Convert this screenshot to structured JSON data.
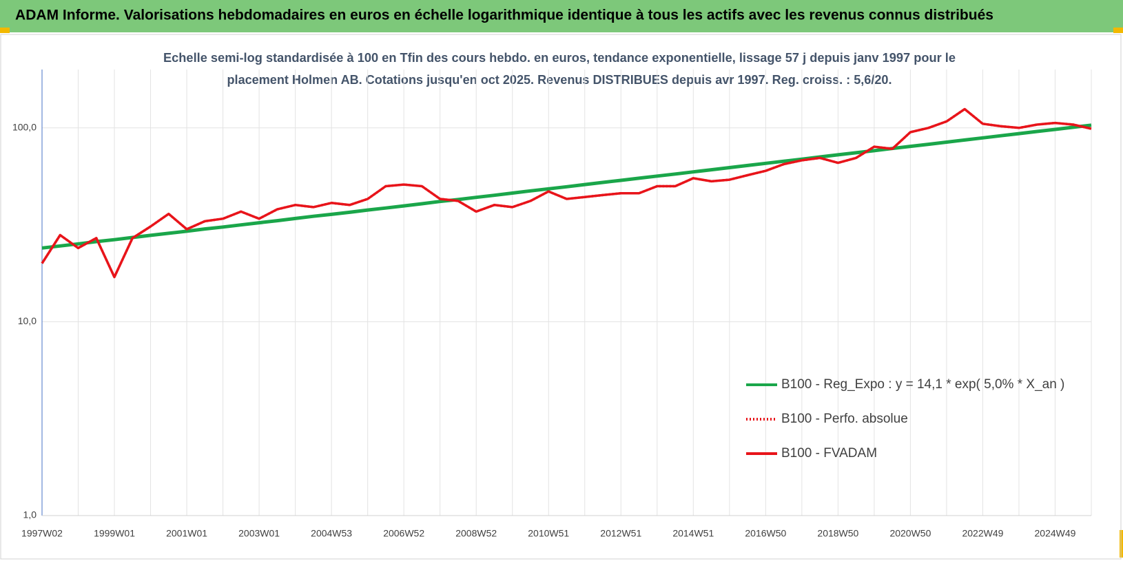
{
  "header": {
    "title": "ADAM Informe. Valorisations hebdomadaires en euros en échelle logarithmique identique à tous les actifs avec les revenus connus distribués"
  },
  "chart_data": {
    "type": "line",
    "title": [
      "Echelle semi-log standardisée à 100 en Tfin des cours hebdo. en euros, tendance exponentielle, lissage 57 j depuis janv 1997 pour le",
      "placement Holmen AB. Cotations jusqu'en oct 2025. Revenus DISTRIBUES depuis avr 1997.  Reg. croiss. : 5,6/20."
    ],
    "log_scale": true,
    "grid": true,
    "legend": "lower-right",
    "ylim": [
      1,
      200
    ],
    "yticks": [
      {
        "value": 1,
        "label": "1,0"
      },
      {
        "value": 10,
        "label": "10,0"
      },
      {
        "value": 100,
        "label": "100,0"
      }
    ],
    "categories": [
      "1997W02",
      null,
      null,
      null,
      "1999W01",
      null,
      null,
      null,
      "2001W01",
      null,
      null,
      null,
      "2003W01",
      null,
      null,
      null,
      "2004W53",
      null,
      null,
      null,
      "2006W52",
      null,
      null,
      null,
      "2008W52",
      null,
      null,
      null,
      "2010W51",
      null,
      null,
      null,
      "2012W51",
      null,
      null,
      null,
      "2014W51",
      null,
      null,
      null,
      "2016W50",
      null,
      null,
      null,
      "2018W50",
      null,
      null,
      null,
      "2020W50",
      null,
      null,
      null,
      "2022W49",
      null,
      null,
      null,
      "2024W49",
      null,
      null
    ],
    "series": [
      {
        "name": "B100 - Reg_Expo : y = 14,1 * exp( 5,0% *  X_an )",
        "color": "#1aa64a",
        "style": "solid",
        "values": [
          24.0,
          24.6,
          25.2,
          25.9,
          26.5,
          27.2,
          27.9,
          28.6,
          29.3,
          30.1,
          30.8,
          31.6,
          32.4,
          33.2,
          34.1,
          35.0,
          35.8,
          36.7,
          37.7,
          38.6,
          39.6,
          40.6,
          41.7,
          42.7,
          43.8,
          44.9,
          46.1,
          47.3,
          48.5,
          49.7,
          51.0,
          52.3,
          53.6,
          55.0,
          56.4,
          57.8,
          59.3,
          60.8,
          62.4,
          64.0,
          65.6,
          67.3,
          69.0,
          70.8,
          72.6,
          74.4,
          76.3,
          78.3,
          80.3,
          82.3,
          84.4,
          86.6,
          88.8,
          91.1,
          93.4,
          95.8,
          98.2,
          100.7,
          103.3
        ]
      },
      {
        "name": "B100 - Perfo. absolue",
        "color": "#e8141a",
        "style": "dotted",
        "values": [
          20,
          28,
          24,
          27,
          17,
          27,
          31,
          36,
          30,
          33,
          34,
          37,
          34,
          38,
          40,
          39,
          41,
          40,
          43,
          50,
          51,
          50,
          43,
          42,
          37,
          40,
          39,
          42,
          47,
          43,
          44,
          45,
          46,
          46,
          50,
          50,
          55,
          53,
          54,
          57,
          60,
          65,
          68,
          70,
          66,
          70,
          80,
          78,
          95,
          100,
          108,
          125,
          105,
          102,
          100,
          104,
          106,
          104,
          99
        ]
      },
      {
        "name": "B100 - FVADAM",
        "color": "#e8141a",
        "style": "solid",
        "values": [
          20,
          28,
          24,
          27,
          17,
          27,
          31,
          36,
          30,
          33,
          34,
          37,
          34,
          38,
          40,
          39,
          41,
          40,
          43,
          50,
          51,
          50,
          43,
          42,
          37,
          40,
          39,
          42,
          47,
          43,
          44,
          45,
          46,
          46,
          50,
          50,
          55,
          53,
          54,
          57,
          60,
          65,
          68,
          70,
          66,
          70,
          80,
          78,
          95,
          100,
          108,
          125,
          105,
          102,
          100,
          104,
          106,
          104,
          99
        ]
      }
    ]
  }
}
